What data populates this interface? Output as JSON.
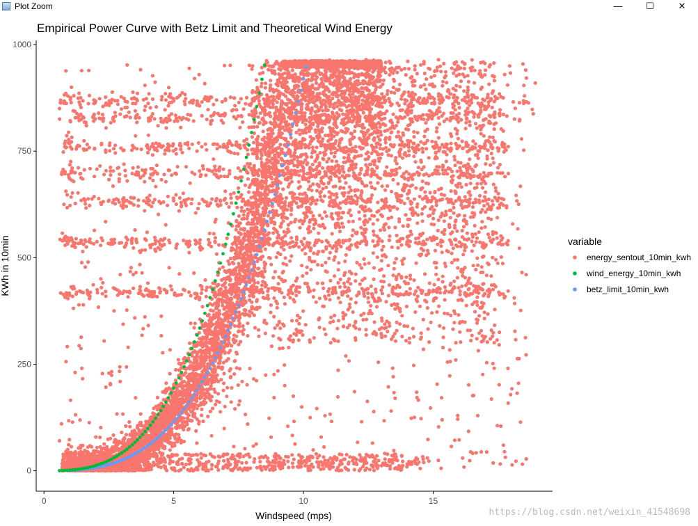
{
  "window": {
    "title": "Plot Zoom",
    "controls": {
      "minimize": "—",
      "maximize": "☐",
      "close": "✕"
    }
  },
  "watermark": "https://blog.csdn.net/weixin_41548698",
  "chart_data": {
    "type": "scatter",
    "title": "Empirical Power Curve with Betz Limit and Theoretical Wind Energy",
    "xlabel": "Windspeed (mps)",
    "ylabel": "KWh in 10min",
    "xlim": [
      -0.3,
      19.6
    ],
    "ylim": [
      -48,
      1010
    ],
    "x_ticks": [
      0,
      5,
      10,
      15
    ],
    "y_ticks": [
      0,
      250,
      500,
      750,
      1000
    ],
    "grid": false,
    "legend": {
      "title": "variable",
      "position": "right",
      "entries": [
        "energy_sentout_10min_kwh",
        "wind_energy_10min_kwh",
        "betz_limit_10min_kwh"
      ]
    },
    "series": [
      {
        "name": "energy_sentout_10min_kwh",
        "color": "#F8766D",
        "description_of_points": "dense scatter (~50k points) following power curve, spread between 0 and ~960 kWh for windspeeds 0.7–19 mps",
        "sample_points": [
          [
            1.0,
            2
          ],
          [
            2.0,
            10
          ],
          [
            3.0,
            28
          ],
          [
            4.0,
            70
          ],
          [
            5.0,
            150
          ],
          [
            6.0,
            270
          ],
          [
            7.0,
            420
          ],
          [
            8.0,
            560
          ],
          [
            9.0,
            650
          ],
          [
            10.0,
            720
          ],
          [
            11.0,
            790
          ],
          [
            12.0,
            820
          ],
          [
            13.0,
            830
          ],
          [
            14.0,
            840
          ],
          [
            15.0,
            850
          ],
          [
            16.0,
            820
          ],
          [
            17.0,
            800
          ]
        ]
      },
      {
        "name": "wind_energy_10min_kwh",
        "color": "#00BA38",
        "formula": "approx 1.55 * x^3",
        "x_range": [
          0.6,
          8.5
        ],
        "sample_points": [
          [
            1,
            1.5
          ],
          [
            2,
            12
          ],
          [
            3,
            42
          ],
          [
            4,
            99
          ],
          [
            5,
            194
          ],
          [
            6,
            335
          ],
          [
            7,
            532
          ],
          [
            7.5,
            654
          ],
          [
            8,
            794
          ],
          [
            8.5,
            952
          ]
        ]
      },
      {
        "name": "betz_limit_10min_kwh",
        "color": "#619CFF",
        "formula": "approx 0.92 * x^3",
        "x_range": [
          0.6,
          10.1
        ],
        "sample_points": [
          [
            1,
            0.9
          ],
          [
            2,
            7
          ],
          [
            3,
            25
          ],
          [
            4,
            59
          ],
          [
            5,
            115
          ],
          [
            6,
            199
          ],
          [
            7,
            316
          ],
          [
            8,
            471
          ],
          [
            9,
            671
          ],
          [
            10,
            920
          ]
        ]
      }
    ]
  }
}
